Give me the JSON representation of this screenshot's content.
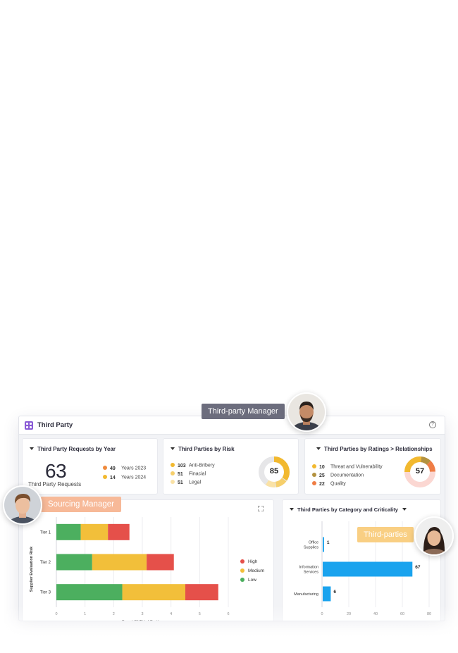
{
  "app": {
    "title": "Third Party"
  },
  "requests_card": {
    "title": "Third Party Requests by Year",
    "total": "63",
    "total_label": "Third Party Requests",
    "legend": [
      {
        "count": "49",
        "label": "Years 2023",
        "color": "#ef8a3c"
      },
      {
        "count": "14",
        "label": "Years 2024",
        "color": "#f2b92f"
      }
    ]
  },
  "risk_card": {
    "title": "Third Parties by Risk",
    "center_value": "85",
    "legend": [
      {
        "count": "103",
        "label": "Anti-Bribery",
        "color": "#f2b92f"
      },
      {
        "count": "51",
        "label": "Finacial",
        "color": "#f6cf6b"
      },
      {
        "count": "51",
        "label": "Legal",
        "color": "#fae2a6"
      }
    ]
  },
  "ratings_card": {
    "title": "Third Parties by Ratings > Relationships",
    "center_value": "57",
    "legend": [
      {
        "count": "10",
        "label": "Threat and Vulnerability",
        "color": "#f2b92f"
      },
      {
        "count": "25",
        "label": "Documentation",
        "color": "#b3923f"
      },
      {
        "count": "22",
        "label": "Quality",
        "color": "#ef7d45"
      }
    ]
  },
  "tier_chart_card": {
    "chart_data": {
      "type": "bar",
      "orientation": "horizontal",
      "stacked": true,
      "categories": [
        "Tier 1",
        "Tier 2",
        "Tier 3"
      ],
      "series": [
        {
          "name": "Low",
          "color": "#4caf5f",
          "values": [
            0.85,
            1.25,
            2.3
          ]
        },
        {
          "name": "Medium",
          "color": "#f2bf3a",
          "values": [
            0.95,
            1.9,
            2.2
          ]
        },
        {
          "name": "High",
          "color": "#e5504a",
          "values": [
            0.75,
            0.95,
            1.15
          ]
        }
      ],
      "xlabel": "Count Of Third Parties",
      "ylabel": "Supplier Evaluation Risk",
      "xlim": [
        0,
        6
      ],
      "xticks": [
        "0",
        "1",
        "2",
        "3",
        "4",
        "5",
        "6"
      ],
      "legend_order": [
        "High",
        "Medium",
        "Low"
      ],
      "legend_position": "right",
      "grid": true
    }
  },
  "category_chart_card": {
    "title": "Third Parties by Category and Criticality",
    "chart_data": {
      "type": "bar",
      "orientation": "horizontal",
      "categories": [
        "Office Supplies",
        "Information Services",
        "Manufacturing"
      ],
      "category_lines": [
        [
          "Office",
          "Supplies"
        ],
        [
          "Information",
          "Services"
        ],
        [
          "Manufacturing"
        ]
      ],
      "values": [
        1,
        67,
        6
      ],
      "data_labels": [
        "1",
        "67",
        "6"
      ],
      "color": "#1aa3ee",
      "xlim": [
        0,
        80
      ],
      "xticks": [
        "0",
        "20",
        "40",
        "60",
        "80"
      ],
      "grid": true
    }
  },
  "personas": {
    "manager": "Third-party Manager",
    "sourcing": "Sourcing Manager",
    "third_parties": "Third-parties"
  }
}
